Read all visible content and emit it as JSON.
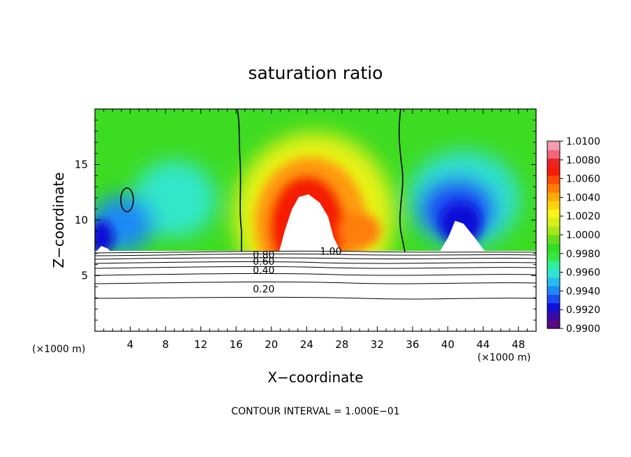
{
  "chart_data": {
    "type": "contour",
    "title": "saturation ratio",
    "xlabel": "X−coordinate",
    "ylabel": "Z−coordinate",
    "x_unit_left": "(×1000 m)",
    "x_unit_right": "(×1000 m)",
    "footer": "CONTOUR INTERVAL = 1.000E−01",
    "xlim": [
      0,
      50
    ],
    "ylim": [
      0,
      20
    ],
    "x_ticks": [
      4,
      8,
      12,
      16,
      20,
      24,
      28,
      32,
      36,
      40,
      44,
      48
    ],
    "x_tick_labels": [
      "4",
      "8",
      "12",
      "16",
      "20",
      "24",
      "28",
      "32",
      "36",
      "40",
      "44",
      "48"
    ],
    "y_ticks": [
      5,
      10,
      15
    ],
    "y_tick_labels": [
      "5",
      "10",
      "15"
    ],
    "colorbar": {
      "range": [
        0.99,
        1.01
      ],
      "labels": [
        "1.0100",
        "1.0080",
        "1.0060",
        "1.0040",
        "1.0020",
        "1.0000",
        "0.9980",
        "0.9960",
        "0.9940",
        "0.9920",
        "0.9900"
      ],
      "colors": [
        "#5a0a84",
        "#3a0aa6",
        "#1010d8",
        "#1a4cf2",
        "#1f8af5",
        "#26bcf0",
        "#30e3d2",
        "#2ef09a",
        "#38e640",
        "#33dd22",
        "#66de1e",
        "#a5e81a",
        "#d8ef1a",
        "#f7f417",
        "#ffd211",
        "#ffaa0b",
        "#ff7d07",
        "#ff4d05",
        "#f51d05",
        "#ec2424",
        "#f4667a",
        "#f79bb0"
      ]
    },
    "contour_labels": [
      {
        "text": "1.00",
        "x": 25.5,
        "z": 7.2
      },
      {
        "text": "0.80",
        "x": 17.9,
        "z": 6.9
      },
      {
        "text": "0.60",
        "x": 17.9,
        "z": 6.3
      },
      {
        "text": "0.40",
        "x": 17.9,
        "z": 5.5
      },
      {
        "text": "0.20",
        "x": 17.9,
        "z": 3.8
      }
    ]
  }
}
